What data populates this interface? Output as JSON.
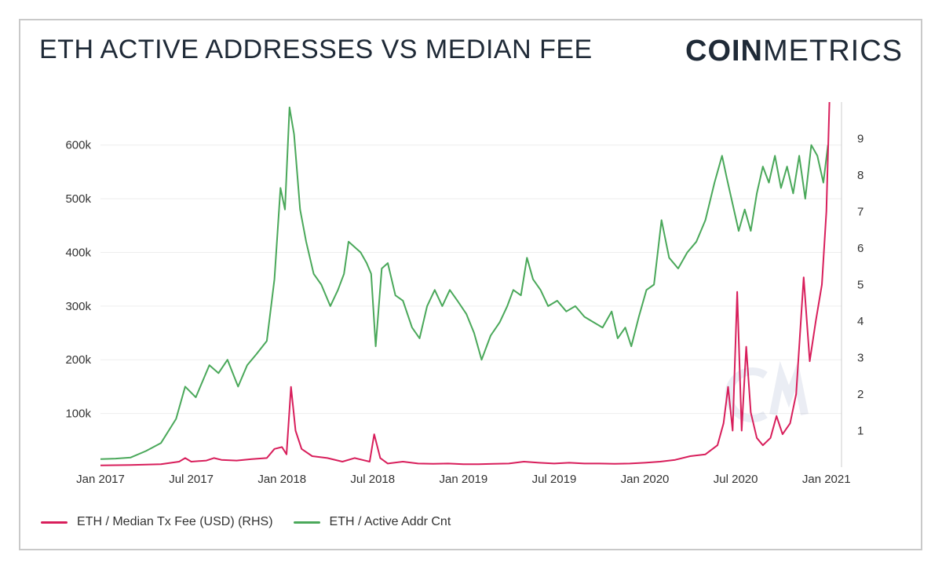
{
  "header": {
    "title": "ETH ACTIVE ADDRESSES VS MEDIAN FEE",
    "logo_bold": "COIN",
    "logo_light": "METRICS"
  },
  "legend": {
    "fee_label": "ETH / Median Tx Fee (USD) (RHS)",
    "addr_label": "ETH / Active Addr Cnt"
  },
  "colors": {
    "fee": "#d81e5b",
    "addr": "#4aa85a",
    "grid": "#eeeeee",
    "text": "#333333"
  },
  "chart_data": {
    "type": "line",
    "x_ticks": [
      "Jan 2017",
      "Jul 2017",
      "Jan 2018",
      "Jul 2018",
      "Jan 2019",
      "Jul 2019",
      "Jan 2020",
      "Jul 2020",
      "Jan 2021"
    ],
    "y_left": {
      "min": 0,
      "max": 680000,
      "ticks": [
        100000,
        200000,
        300000,
        400000,
        500000,
        600000
      ],
      "tick_labels": [
        "100k",
        "200k",
        "300k",
        "400k",
        "500k",
        "600k"
      ]
    },
    "y_right": {
      "min": 0,
      "max": 10,
      "ticks": [
        1,
        2,
        3,
        4,
        5,
        6,
        7,
        8,
        9
      ],
      "tick_labels": [
        "1",
        "2",
        "3",
        "4",
        "5",
        "6",
        "7",
        "8",
        "9"
      ]
    },
    "x_range": [
      0,
      49
    ],
    "series": [
      {
        "name": "ETH / Active Addr Cnt",
        "axis": "left",
        "points": [
          [
            0,
            15000
          ],
          [
            1,
            16000
          ],
          [
            2,
            18000
          ],
          [
            3,
            30000
          ],
          [
            4,
            45000
          ],
          [
            5,
            90000
          ],
          [
            5.6,
            150000
          ],
          [
            6.3,
            130000
          ],
          [
            7.2,
            190000
          ],
          [
            7.8,
            175000
          ],
          [
            8.4,
            200000
          ],
          [
            9.1,
            150000
          ],
          [
            9.7,
            190000
          ],
          [
            10.3,
            210000
          ],
          [
            11,
            235000
          ],
          [
            11.5,
            350000
          ],
          [
            11.9,
            520000
          ],
          [
            12.2,
            480000
          ],
          [
            12.5,
            670000
          ],
          [
            12.8,
            620000
          ],
          [
            13.2,
            480000
          ],
          [
            13.6,
            420000
          ],
          [
            14.1,
            360000
          ],
          [
            14.6,
            340000
          ],
          [
            15.2,
            300000
          ],
          [
            15.7,
            330000
          ],
          [
            16.1,
            360000
          ],
          [
            16.4,
            420000
          ],
          [
            16.8,
            410000
          ],
          [
            17.2,
            400000
          ],
          [
            17.6,
            380000
          ],
          [
            17.9,
            360000
          ],
          [
            18.2,
            225000
          ],
          [
            18.6,
            370000
          ],
          [
            19,
            380000
          ],
          [
            19.5,
            320000
          ],
          [
            20,
            310000
          ],
          [
            20.6,
            260000
          ],
          [
            21.1,
            240000
          ],
          [
            21.6,
            300000
          ],
          [
            22.1,
            330000
          ],
          [
            22.6,
            300000
          ],
          [
            23.1,
            330000
          ],
          [
            23.6,
            310000
          ],
          [
            24.2,
            285000
          ],
          [
            24.7,
            250000
          ],
          [
            25.2,
            200000
          ],
          [
            25.8,
            245000
          ],
          [
            26.4,
            270000
          ],
          [
            26.9,
            300000
          ],
          [
            27.3,
            330000
          ],
          [
            27.8,
            320000
          ],
          [
            28.2,
            390000
          ],
          [
            28.6,
            350000
          ],
          [
            29.1,
            330000
          ],
          [
            29.6,
            300000
          ],
          [
            30.2,
            310000
          ],
          [
            30.8,
            290000
          ],
          [
            31.4,
            300000
          ],
          [
            32,
            280000
          ],
          [
            32.6,
            270000
          ],
          [
            33.2,
            260000
          ],
          [
            33.8,
            290000
          ],
          [
            34.2,
            240000
          ],
          [
            34.7,
            260000
          ],
          [
            35.1,
            225000
          ],
          [
            35.6,
            280000
          ],
          [
            36.1,
            330000
          ],
          [
            36.6,
            340000
          ],
          [
            37.1,
            460000
          ],
          [
            37.6,
            390000
          ],
          [
            38.2,
            370000
          ],
          [
            38.8,
            400000
          ],
          [
            39.4,
            420000
          ],
          [
            40,
            460000
          ],
          [
            40.6,
            530000
          ],
          [
            41.1,
            580000
          ],
          [
            41.4,
            540000
          ],
          [
            41.8,
            490000
          ],
          [
            42.2,
            440000
          ],
          [
            42.6,
            480000
          ],
          [
            43,
            440000
          ],
          [
            43.4,
            510000
          ],
          [
            43.8,
            560000
          ],
          [
            44.2,
            530000
          ],
          [
            44.6,
            580000
          ],
          [
            45,
            520000
          ],
          [
            45.4,
            560000
          ],
          [
            45.8,
            510000
          ],
          [
            46.2,
            580000
          ],
          [
            46.6,
            500000
          ],
          [
            47,
            600000
          ],
          [
            47.4,
            580000
          ],
          [
            47.8,
            530000
          ],
          [
            48.1,
            600000
          ]
        ]
      },
      {
        "name": "ETH / Median Tx Fee (USD) (RHS)",
        "axis": "right",
        "points": [
          [
            0,
            0.05
          ],
          [
            2,
            0.06
          ],
          [
            4,
            0.08
          ],
          [
            5.2,
            0.15
          ],
          [
            5.6,
            0.25
          ],
          [
            6,
            0.15
          ],
          [
            7,
            0.18
          ],
          [
            7.5,
            0.25
          ],
          [
            8,
            0.2
          ],
          [
            9,
            0.18
          ],
          [
            10,
            0.22
          ],
          [
            11,
            0.25
          ],
          [
            11.5,
            0.5
          ],
          [
            12,
            0.55
          ],
          [
            12.3,
            0.35
          ],
          [
            12.6,
            2.2
          ],
          [
            12.9,
            1.0
          ],
          [
            13.3,
            0.5
          ],
          [
            14,
            0.3
          ],
          [
            15,
            0.25
          ],
          [
            16,
            0.15
          ],
          [
            16.8,
            0.25
          ],
          [
            17.3,
            0.2
          ],
          [
            17.8,
            0.15
          ],
          [
            18.1,
            0.9
          ],
          [
            18.5,
            0.25
          ],
          [
            19,
            0.1
          ],
          [
            20,
            0.15
          ],
          [
            21,
            0.1
          ],
          [
            22,
            0.09
          ],
          [
            23,
            0.1
          ],
          [
            24,
            0.08
          ],
          [
            25,
            0.08
          ],
          [
            26,
            0.09
          ],
          [
            27,
            0.1
          ],
          [
            28,
            0.15
          ],
          [
            29,
            0.12
          ],
          [
            30,
            0.1
          ],
          [
            31,
            0.12
          ],
          [
            32,
            0.1
          ],
          [
            33,
            0.1
          ],
          [
            34,
            0.09
          ],
          [
            35,
            0.1
          ],
          [
            36,
            0.12
          ],
          [
            37,
            0.15
          ],
          [
            38,
            0.2
          ],
          [
            39,
            0.3
          ],
          [
            40,
            0.35
          ],
          [
            40.8,
            0.6
          ],
          [
            41.2,
            1.2
          ],
          [
            41.5,
            2.2
          ],
          [
            41.8,
            1.0
          ],
          [
            42.1,
            4.8
          ],
          [
            42.4,
            1.0
          ],
          [
            42.7,
            3.3
          ],
          [
            43,
            1.5
          ],
          [
            43.4,
            0.8
          ],
          [
            43.8,
            0.6
          ],
          [
            44.3,
            0.8
          ],
          [
            44.7,
            1.4
          ],
          [
            45.1,
            0.9
          ],
          [
            45.6,
            1.2
          ],
          [
            46,
            2.0
          ],
          [
            46.5,
            5.2
          ],
          [
            46.9,
            2.9
          ],
          [
            47.3,
            4.0
          ],
          [
            47.7,
            5.0
          ],
          [
            48,
            7.0
          ],
          [
            48.2,
            10.0
          ]
        ]
      }
    ]
  }
}
